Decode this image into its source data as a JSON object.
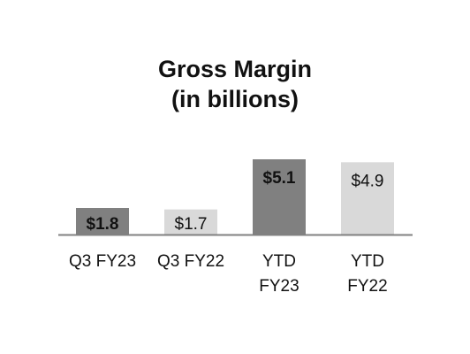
{
  "chart_data": {
    "type": "bar",
    "title": "Gross Margin",
    "subtitle": "(in billions)",
    "categories": [
      [
        "Q3 FY23"
      ],
      [
        "Q3 FY22"
      ],
      [
        "YTD",
        "FY23"
      ],
      [
        "YTD",
        "FY22"
      ]
    ],
    "values": [
      1.8,
      1.7,
      5.1,
      4.9
    ],
    "value_labels": [
      "$1.8",
      "$1.7",
      "$5.1",
      "$4.9"
    ],
    "label_bold": [
      true,
      false,
      true,
      false
    ],
    "colors": [
      "#808080",
      "#d9d9d9",
      "#808080",
      "#d9d9d9"
    ],
    "axis_color": "#808080",
    "xlabel": "",
    "ylabel": "",
    "ylim": [
      0,
      5.1
    ],
    "grid": false,
    "legend": "none"
  }
}
